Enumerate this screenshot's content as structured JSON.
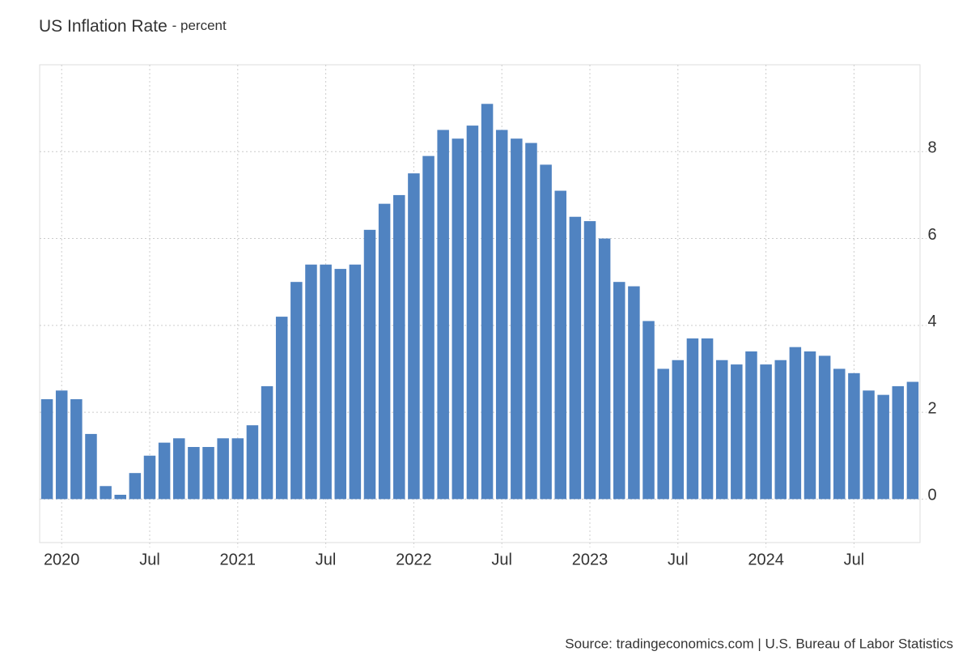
{
  "chart_data": {
    "type": "bar",
    "title": "US Inflation Rate",
    "subtitle": "- percent",
    "source": "Source: tradingeconomics.com | U.S. Bureau of Labor Statistics",
    "categories": [
      null,
      "2020",
      null,
      null,
      null,
      null,
      null,
      "Jul",
      null,
      null,
      null,
      null,
      null,
      "2021",
      null,
      null,
      null,
      null,
      null,
      "Jul",
      null,
      null,
      null,
      null,
      null,
      "2022",
      null,
      null,
      null,
      null,
      null,
      "Jul",
      null,
      null,
      null,
      null,
      null,
      "2023",
      null,
      null,
      null,
      null,
      null,
      "Jul",
      null,
      null,
      null,
      null,
      null,
      "2024",
      null,
      null,
      null,
      null,
      null,
      "Jul",
      null,
      null,
      null,
      null
    ],
    "values": [
      2.3,
      2.5,
      2.3,
      1.5,
      0.3,
      0.1,
      0.6,
      1.0,
      1.3,
      1.4,
      1.2,
      1.2,
      1.4,
      1.4,
      1.7,
      2.6,
      4.2,
      5.0,
      5.4,
      5.4,
      5.3,
      5.4,
      6.2,
      6.8,
      7.0,
      7.5,
      7.9,
      8.5,
      8.3,
      8.6,
      9.1,
      8.5,
      8.3,
      8.2,
      7.7,
      7.1,
      6.5,
      6.4,
      6.0,
      5.0,
      4.9,
      4.1,
      3.0,
      3.2,
      3.7,
      3.7,
      3.2,
      3.1,
      3.4,
      3.1,
      3.2,
      3.5,
      3.4,
      3.3,
      3.0,
      2.9,
      2.5,
      2.4,
      2.6,
      2.7
    ],
    "color": "#5083c1",
    "ylim": [
      -1,
      10
    ],
    "yticks": [
      0,
      2,
      4,
      6,
      8
    ],
    "grid": true
  }
}
